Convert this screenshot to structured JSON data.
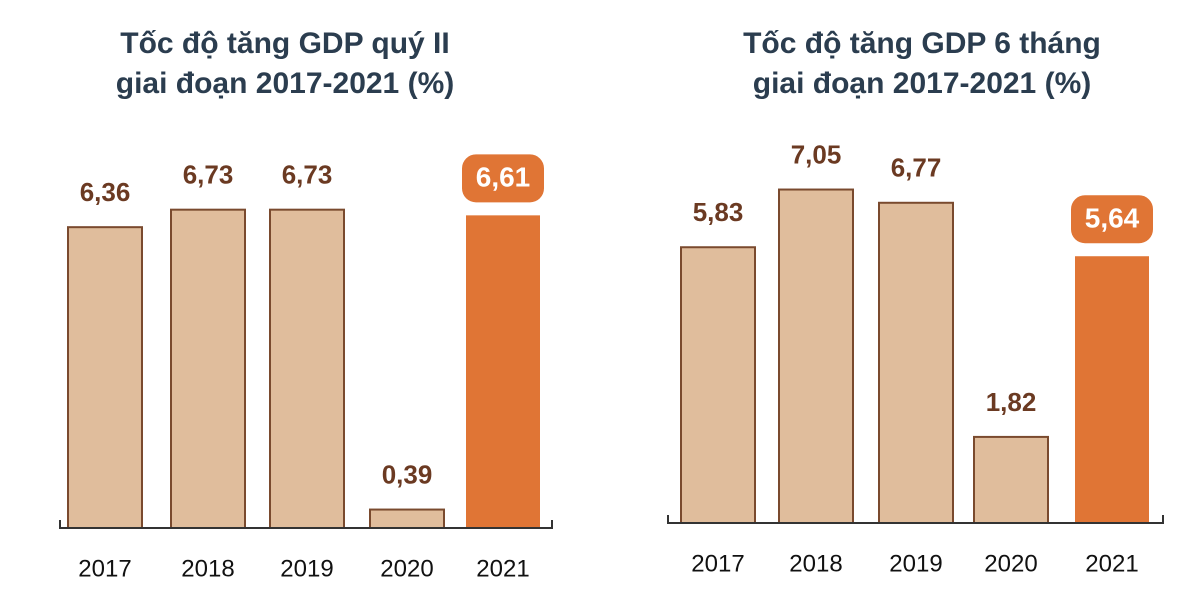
{
  "chart_data": [
    {
      "type": "bar",
      "title": [
        "Tốc độ tăng GDP quý II",
        "giai đoạn 2017-2021 (%)"
      ],
      "categories": [
        "2017",
        "2018",
        "2019",
        "2020",
        "2021"
      ],
      "values": [
        6.36,
        6.73,
        6.73,
        0.39,
        6.61
      ],
      "value_labels": [
        "6,36",
        "6,73",
        "6,73",
        "0,39",
        "6,61"
      ],
      "colors": [
        "#e0bd9c",
        "#e0bd9c",
        "#e0bd9c",
        "#e0bd9c",
        "#e07535"
      ],
      "highlight_color": "#e07535"
    },
    {
      "type": "bar",
      "title": [
        "Tốc độ tăng GDP 6 tháng",
        "giai đoạn 2017-2021 (%)"
      ],
      "categories": [
        "2017",
        "2018",
        "2019",
        "2020",
        "2021"
      ],
      "values": [
        5.83,
        7.05,
        6.77,
        1.82,
        5.64
      ],
      "value_labels": [
        "5,83",
        "7,05",
        "6,77",
        "1,82",
        "5,64"
      ],
      "colors": [
        "#e0bd9c",
        "#e0bd9c",
        "#e0bd9c",
        "#e0bd9c",
        "#e07535"
      ],
      "highlight_color": "#e07535"
    }
  ]
}
